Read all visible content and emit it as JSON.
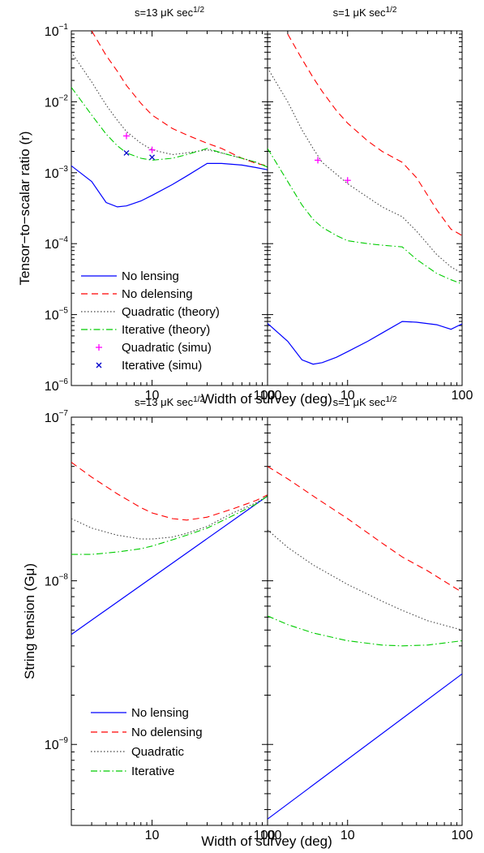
{
  "chart_data": [
    {
      "type": "line",
      "id": "tensor",
      "ylabel": "Tensor−to−scalar ratio (r)",
      "xlabel": "Width of survey (deg)",
      "yscale": "log",
      "xscale": "log",
      "ylim": [
        1e-06,
        0.1
      ],
      "xlim": [
        2,
        100
      ],
      "grid": false,
      "legend_position": "lower-left",
      "ytick_labels": [
        {
          "base": "10",
          "exp": "−1",
          "value": 0.1
        },
        {
          "base": "10",
          "exp": "−2",
          "value": 0.01
        },
        {
          "base": "10",
          "exp": "−3",
          "value": 0.001
        },
        {
          "base": "10",
          "exp": "−4",
          "value": 0.0001
        },
        {
          "base": "10",
          "exp": "−5",
          "value": 1e-05
        },
        {
          "base": "10",
          "exp": "−6",
          "value": 1e-06
        }
      ],
      "xtick_labels": [
        "10",
        "100"
      ],
      "panels": [
        {
          "title_base": "s=13 μK sec",
          "title_exp": "1/2",
          "series": [
            {
              "name": "No lensing",
              "color": "#0000ff",
              "dash": "solid",
              "x": [
                2,
                3,
                4,
                5,
                6,
                8,
                10,
                15,
                20,
                30,
                40,
                60,
                80,
                100
              ],
              "y": [
                0.00125,
                0.00075,
                0.00038,
                0.00033,
                0.00034,
                0.0004,
                0.00048,
                0.00068,
                0.0009,
                0.00135,
                0.00135,
                0.00128,
                0.00118,
                0.0011
              ]
            },
            {
              "name": "No delensing",
              "color": "#ff0000",
              "dash": "dashed",
              "x": [
                3,
                4,
                5,
                6,
                8,
                10,
                15,
                20,
                30,
                40,
                60,
                80,
                100
              ],
              "y": [
                0.1,
                0.045,
                0.027,
                0.017,
                0.0095,
                0.0065,
                0.0042,
                0.0034,
                0.0026,
                0.0022,
                0.0016,
                0.00135,
                0.00125
              ]
            },
            {
              "name": "Quadratic (theory)",
              "color": "#444444",
              "dash": "dotted",
              "x": [
                2,
                3,
                4,
                5,
                6,
                8,
                10,
                15,
                20,
                30,
                40,
                60,
                80,
                100
              ],
              "y": [
                0.05,
                0.019,
                0.009,
                0.0055,
                0.0038,
                0.0026,
                0.0021,
                0.0018,
                0.0019,
                0.0021,
                0.0019,
                0.0016,
                0.0014,
                0.0012
              ]
            },
            {
              "name": "Iterative (theory)",
              "color": "#00cc00",
              "dash": "dashdot",
              "x": [
                2,
                3,
                4,
                5,
                6,
                8,
                10,
                15,
                20,
                30,
                40,
                60,
                80,
                100
              ],
              "y": [
                0.016,
                0.0065,
                0.0035,
                0.0024,
                0.0019,
                0.0016,
                0.0015,
                0.0016,
                0.0018,
                0.0022,
                0.0019,
                0.0016,
                0.0014,
                0.0012
              ]
            },
            {
              "name": "Quadratic (simu)",
              "color": "#ff00ff",
              "marker": "+",
              "x": [
                6,
                10
              ],
              "y": [
                0.0033,
                0.0021
              ]
            },
            {
              "name": "Iterative (simu)",
              "color": "#0000cc",
              "marker": "x",
              "x": [
                6,
                10
              ],
              "y": [
                0.0019,
                0.00165
              ]
            }
          ]
        },
        {
          "title_base": "s=1 μK sec",
          "title_exp": "1/2",
          "series": [
            {
              "name": "No lensing",
              "color": "#0000ff",
              "dash": "solid",
              "x": [
                2,
                3,
                4,
                5,
                6,
                8,
                10,
                15,
                20,
                30,
                40,
                60,
                80,
                100
              ],
              "y": [
                7.5e-06,
                4.2e-06,
                2.3e-06,
                2e-06,
                2.1e-06,
                2.5e-06,
                3e-06,
                4.2e-06,
                5.5e-06,
                8e-06,
                7.8e-06,
                7.2e-06,
                6.2e-06,
                7.4e-06
              ]
            },
            {
              "name": "No delensing",
              "color": "#ff0000",
              "dash": "dashed",
              "x": [
                3,
                4,
                5,
                6,
                8,
                10,
                15,
                20,
                30,
                40,
                60,
                80,
                100
              ],
              "y": [
                0.09,
                0.04,
                0.022,
                0.014,
                0.0075,
                0.005,
                0.0028,
                0.002,
                0.0014,
                0.00085,
                0.0003,
                0.00016,
                0.00013
              ]
            },
            {
              "name": "Quadratic (theory)",
              "color": "#444444",
              "dash": "dotted",
              "x": [
                2,
                3,
                4,
                5,
                6,
                8,
                10,
                15,
                20,
                30,
                40,
                60,
                80,
                100
              ],
              "y": [
                0.03,
                0.01,
                0.004,
                0.0022,
                0.0014,
                0.00095,
                0.0007,
                0.00045,
                0.00033,
                0.00024,
                0.00015,
                7e-05,
                4.7e-05,
                3.8e-05
              ]
            },
            {
              "name": "Iterative (theory)",
              "color": "#00cc00",
              "dash": "dashdot",
              "x": [
                2,
                3,
                4,
                5,
                6,
                8,
                10,
                15,
                20,
                30,
                40,
                60,
                80,
                100
              ],
              "y": [
                0.0022,
                0.00075,
                0.00035,
                0.00022,
                0.00017,
                0.00013,
                0.00011,
                0.0001,
                9.5e-05,
                9e-05,
                6e-05,
                3.8e-05,
                3.1e-05,
                2.7e-05
              ]
            },
            {
              "name": "Quadratic (simu)",
              "color": "#ff00ff",
              "marker": "+",
              "x": [
                5.5,
                10
              ],
              "y": [
                0.0015,
                0.00078
              ]
            }
          ]
        }
      ],
      "legend": [
        {
          "label": "No lensing",
          "color": "#0000ff",
          "dash": "solid"
        },
        {
          "label": "No delensing",
          "color": "#ff0000",
          "dash": "dashed"
        },
        {
          "label": "Quadratic (theory)",
          "color": "#444444",
          "dash": "dotted"
        },
        {
          "label": "Iterative (theory)",
          "color": "#00cc00",
          "dash": "dashdot"
        },
        {
          "label": "Quadratic (simu)",
          "color": "#ff00ff",
          "marker": "+"
        },
        {
          "label": "Iterative (simu)",
          "color": "#0000cc",
          "marker": "x"
        }
      ]
    },
    {
      "type": "line",
      "id": "string",
      "ylabel": "String tension (Gμ)",
      "xlabel": "Width of survey (deg)",
      "yscale": "log",
      "xscale": "log",
      "ylim": [
        3.2e-10,
        1e-07
      ],
      "xlim": [
        2,
        100
      ],
      "grid": false,
      "legend_position": "lower-left",
      "ytick_labels": [
        {
          "base": "10",
          "exp": "−7",
          "value": 1e-07
        },
        {
          "base": "10",
          "exp": "−8",
          "value": 1e-08
        },
        {
          "base": "10",
          "exp": "−9",
          "value": 1e-09
        }
      ],
      "xtick_labels": [
        "10",
        "100"
      ],
      "panels": [
        {
          "title_base": "s=13 μK sec",
          "title_exp": "1/2",
          "series": [
            {
              "name": "No lensing",
              "color": "#0000ff",
              "dash": "solid",
              "x": [
                2,
                100
              ],
              "y": [
                4.7e-09,
                3.3e-08
              ]
            },
            {
              "name": "No delensing",
              "color": "#ff0000",
              "dash": "dashed",
              "x": [
                2,
                3,
                5,
                8,
                10,
                15,
                20,
                30,
                50,
                80,
                100
              ],
              "y": [
                5.3e-08,
                4.3e-08,
                3.4e-08,
                2.8e-08,
                2.6e-08,
                2.4e-08,
                2.35e-08,
                2.45e-08,
                2.75e-08,
                3.1e-08,
                3.35e-08
              ]
            },
            {
              "name": "Quadratic",
              "color": "#444444",
              "dash": "dotted",
              "x": [
                2,
                3,
                5,
                8,
                10,
                15,
                20,
                30,
                50,
                80,
                100
              ],
              "y": [
                2.4e-08,
                2.1e-08,
                1.9e-08,
                1.8e-08,
                1.8e-08,
                1.85e-08,
                1.95e-08,
                2.15e-08,
                2.6e-08,
                3e-08,
                3.3e-08
              ]
            },
            {
              "name": "Iterative",
              "color": "#00cc00",
              "dash": "dashdot",
              "x": [
                2,
                3,
                5,
                8,
                10,
                15,
                20,
                30,
                50,
                80,
                100
              ],
              "y": [
                1.45e-08,
                1.45e-08,
                1.5e-08,
                1.57e-08,
                1.63e-08,
                1.78e-08,
                1.9e-08,
                2.1e-08,
                2.5e-08,
                2.95e-08,
                3.3e-08
              ]
            }
          ]
        },
        {
          "title_base": "s=1 μK sec",
          "title_exp": "1/2",
          "series": [
            {
              "name": "No lensing",
              "color": "#0000ff",
              "dash": "solid",
              "x": [
                2,
                100
              ],
              "y": [
                3.5e-10,
                2.7e-09
              ]
            },
            {
              "name": "No delensing",
              "color": "#ff0000",
              "dash": "dashed",
              "x": [
                2,
                3,
                5,
                10,
                20,
                30,
                50,
                100
              ],
              "y": [
                5e-08,
                4.2e-08,
                3.3e-08,
                2.4e-08,
                1.7e-08,
                1.4e-08,
                1.15e-08,
                8.5e-09
              ]
            },
            {
              "name": "Quadratic",
              "color": "#444444",
              "dash": "dotted",
              "x": [
                2,
                3,
                5,
                10,
                20,
                30,
                50,
                100
              ],
              "y": [
                2.05e-08,
                1.6e-08,
                1.25e-08,
                9.5e-09,
                7.5e-09,
                6.6e-09,
                5.7e-09,
                5e-09
              ]
            },
            {
              "name": "Iterative",
              "color": "#00cc00",
              "dash": "dashdot",
              "x": [
                2,
                3,
                5,
                10,
                20,
                30,
                50,
                100
              ],
              "y": [
                6.1e-09,
                5.4e-09,
                4.8e-09,
                4.3e-09,
                4.05e-09,
                4e-09,
                4.05e-09,
                4.3e-09
              ]
            }
          ]
        }
      ],
      "legend": [
        {
          "label": "No lensing",
          "color": "#0000ff",
          "dash": "solid"
        },
        {
          "label": "No delensing",
          "color": "#ff0000",
          "dash": "dashed"
        },
        {
          "label": "Quadratic",
          "color": "#444444",
          "dash": "dotted"
        },
        {
          "label": "Iterative",
          "color": "#00cc00",
          "dash": "dashdot"
        }
      ]
    }
  ]
}
